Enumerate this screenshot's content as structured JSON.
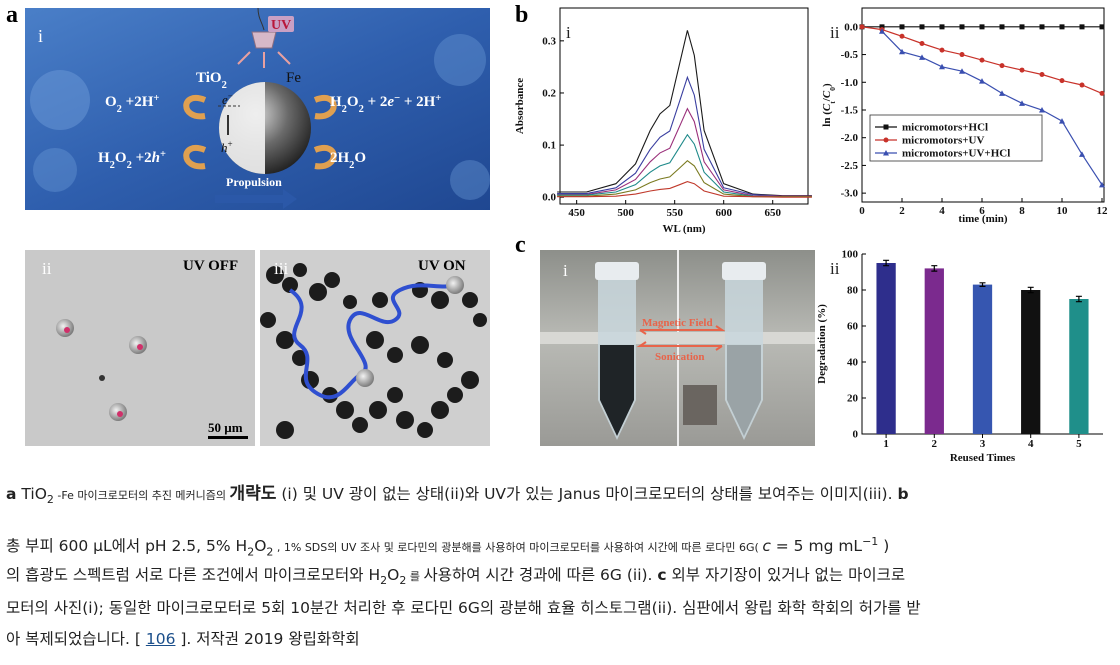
{
  "panel_labels": [
    "a",
    "b",
    "c"
  ],
  "schematic": {
    "index": "i",
    "uv": "UV",
    "tio2": [
      {
        "text": "TiO"
      },
      {
        "text": "2",
        "style": "sub"
      }
    ],
    "fe": "Fe",
    "left_top": [
      {
        "text": "O"
      },
      {
        "text": "2",
        "style": "sub"
      },
      {
        "text": " +2H"
      },
      {
        "text": "+",
        "style": "sup"
      }
    ],
    "right_top": [
      {
        "text": "H"
      },
      {
        "text": "2",
        "style": "sub"
      },
      {
        "text": "O"
      },
      {
        "text": "2",
        "style": "sub"
      },
      {
        "text": " + 2"
      },
      {
        "text": "e",
        "style": "italic"
      },
      {
        "text": "−",
        "style": "sup"
      },
      {
        "text": " + 2H"
      },
      {
        "text": "+",
        "style": "sup"
      }
    ],
    "left_bottom": [
      {
        "text": "H"
      },
      {
        "text": "2",
        "style": "sub"
      },
      {
        "text": "O"
      },
      {
        "text": "2",
        "style": "sub"
      },
      {
        "text": " +2"
      },
      {
        "text": "h",
        "style": "italic"
      },
      {
        "text": "+",
        "style": "sup"
      }
    ],
    "right_bottom": [
      {
        "text": "2H"
      },
      {
        "text": "2",
        "style": "sub"
      },
      {
        "text": "O"
      }
    ],
    "electron": [
      {
        "text": "e",
        "style": "italic"
      },
      {
        "text": "−",
        "style": "sup"
      }
    ],
    "hole": [
      {
        "text": "h",
        "style": "italic"
      },
      {
        "text": "+",
        "style": "sup"
      }
    ],
    "propulsion": "Propulsion"
  },
  "micrographs": {
    "off_index": "ii",
    "off_label": "UV OFF",
    "on_index": "iii",
    "on_label": "UV ON",
    "scale_bar": "50 µm"
  },
  "photo": {
    "index": "i",
    "magnetic": "Magnetic Field",
    "sonication": "Sonication"
  },
  "chart_data": [
    {
      "type": "line",
      "panel_index": "i",
      "xlabel": "WL (nm)",
      "ylabel": "Absorbance",
      "x": [
        430,
        460,
        490,
        510,
        525,
        535,
        545,
        555,
        563,
        570,
        580,
        600,
        630,
        660,
        690
      ],
      "series": [
        {
          "color": "#1a1a1a",
          "values": [
            0.01,
            0.01,
            0.026,
            0.064,
            0.128,
            0.16,
            0.176,
            0.256,
            0.32,
            0.272,
            0.128,
            0.026,
            0.006,
            0.003,
            0.003
          ]
        },
        {
          "color": "#3a3fa0",
          "values": [
            0.007,
            0.007,
            0.018,
            0.046,
            0.092,
            0.115,
            0.127,
            0.184,
            0.23,
            0.196,
            0.092,
            0.018,
            0.005,
            0.002,
            0.002
          ]
        },
        {
          "color": "#9a2f7a",
          "values": [
            0.005,
            0.005,
            0.014,
            0.034,
            0.068,
            0.085,
            0.094,
            0.136,
            0.17,
            0.145,
            0.068,
            0.014,
            0.003,
            0.002,
            0.002
          ]
        },
        {
          "color": "#1f8a8a",
          "values": [
            0.004,
            0.004,
            0.01,
            0.024,
            0.048,
            0.06,
            0.066,
            0.096,
            0.12,
            0.102,
            0.048,
            0.01,
            0.002,
            0.001,
            0.001
          ]
        },
        {
          "color": "#7a7a20",
          "values": [
            0.002,
            0.002,
            0.006,
            0.014,
            0.028,
            0.035,
            0.039,
            0.056,
            0.07,
            0.06,
            0.028,
            0.006,
            0.001,
            0.001,
            0.001
          ]
        },
        {
          "color": "#c0392b",
          "values": [
            0.001,
            0.001,
            0.002,
            0.006,
            0.012,
            0.015,
            0.017,
            0.024,
            0.03,
            0.026,
            0.012,
            0.002,
            0.001,
            0,
            0
          ]
        }
      ],
      "xlim": [
        433,
        686
      ],
      "ylim": [
        -0.013,
        0.363
      ],
      "xticks": [
        450,
        500,
        550,
        600,
        650
      ],
      "yticks": [
        {
          "value": 0,
          "label": "0.0"
        },
        0.1,
        0.2,
        0.3
      ]
    },
    {
      "type": "scatter",
      "panel_index": "ii",
      "xlabel": "time (min)",
      "ylabel": [
        {
          "text": "ln ("
        },
        {
          "text": "C",
          "style": "italic"
        },
        {
          "text": "t",
          "style": "sub"
        },
        {
          "text": "/"
        },
        {
          "text": "C",
          "style": "italic"
        },
        {
          "text": "0",
          "style": "sub"
        },
        {
          "text": ")"
        }
      ],
      "x": [
        0,
        1,
        2,
        3,
        4,
        5,
        6,
        7,
        8,
        9,
        10,
        11,
        12
      ],
      "series": [
        {
          "name": "micromotors+HCl",
          "color": "#111111",
          "marker": "square",
          "values": [
            0,
            0,
            0,
            0,
            0,
            0,
            0,
            0,
            0,
            0,
            0,
            0,
            0
          ]
        },
        {
          "name": "micromotors+UV",
          "color": "#c8322a",
          "marker": "circle",
          "values": [
            0,
            -0.05,
            -0.17,
            -0.3,
            -0.42,
            -0.5,
            -0.6,
            -0.7,
            -0.78,
            -0.86,
            -0.97,
            -1.05,
            -1.2
          ]
        },
        {
          "name": "micromotors+UV+HCl",
          "color": "#3a4fb0",
          "marker": "triangle",
          "values": [
            null,
            -0.08,
            -0.45,
            -0.55,
            -0.72,
            -0.8,
            -0.98,
            -1.2,
            -1.38,
            -1.5,
            -1.7,
            -2.3,
            -2.85
          ]
        }
      ],
      "legend": "center left",
      "xlim": [
        0,
        12.1
      ],
      "ylim": [
        -3.16,
        0.34
      ],
      "xticks": [
        0,
        2,
        4,
        6,
        8,
        10,
        12
      ],
      "yticks": [
        {
          "value": 0,
          "label": "0.0"
        },
        -0.5,
        {
          "value": -1,
          "label": "-1.0"
        },
        -1.5,
        {
          "value": -2,
          "label": "-2.0"
        },
        -2.5,
        {
          "value": -3,
          "label": "-3.0"
        }
      ]
    },
    {
      "type": "bar",
      "panel_index": "ii",
      "xlabel": "Reused Times",
      "ylabel": "Degradation (%)",
      "categories": [
        "1",
        "2",
        "3",
        "4",
        "5"
      ],
      "values": [
        95,
        92,
        83,
        80,
        75
      ],
      "errors": [
        1.5,
        1.5,
        1,
        1.5,
        1.5
      ],
      "colors": [
        "#2e2e8c",
        "#7b2a8e",
        "#3656b0",
        "#111111",
        "#1f8f8a"
      ],
      "ylim": [
        0,
        100
      ],
      "yticks": [
        0,
        20,
        40,
        60,
        80,
        100
      ]
    }
  ],
  "caption": {
    "lines": [
      [
        {
          "text": "a",
          "style": "bold"
        },
        {
          "text": " TiO"
        },
        {
          "text": "2",
          "style": "sub"
        },
        {
          "text": " -Fe 마이크로모터의 추진 메커니즘의 ",
          "style": "small"
        },
        {
          "text": "개략도",
          "style": "big-bold"
        },
        {
          "text": " (i) 및 UV 광이 없는 상태(ii)와 UV가 있는 Janus 마이크로모터의 상태를 보여주는 이미지(iii). "
        },
        {
          "text": "b",
          "style": "bold"
        }
      ],
      [
        {
          "text": "총 부피 600 μL에서 pH 2.5, 5% H"
        },
        {
          "text": "2",
          "style": "sub"
        },
        {
          "text": "O"
        },
        {
          "text": "2",
          "style": "sub"
        },
        {
          "text": " , 1% SDS의 UV 조사 및 로다민의 광분해를 사용하여 마이크로모터를 사용하여 시간에 따른 로다민 6G( ",
          "style": "small"
        },
        {
          "text": "c",
          "style": "italic"
        },
        {
          "text": " = 5 mg mL"
        },
        {
          "text": "−1",
          "style": "sup"
        },
        {
          "text": " )"
        }
      ],
      [
        {
          "text": "의 흡광도 스펙트럼 서로 다른 조건에서 마이크로모터와 H"
        },
        {
          "text": "2",
          "style": "sub"
        },
        {
          "text": "O"
        },
        {
          "text": "2",
          "style": "sub"
        },
        {
          "text": " 를 ",
          "style": "small"
        },
        {
          "text": "사용하여 시간 경과에 따른 6G (ii). "
        },
        {
          "text": "c",
          "style": "bold"
        },
        {
          "text": " 외부 자기장이 있거나 없는 마이크로"
        }
      ],
      [
        {
          "text": "모터의 사진(i); 동일한 마이크로모터로 5회 10분간 처리한 후 로다민 6G의 광분해 효율 히스토그램(ii). 심판에서 왕립 화학 학회의 허가를 받"
        }
      ],
      [
        {
          "text": "아 복제되었습니다. [ "
        },
        {
          "text": "106",
          "style": "link"
        },
        {
          "text": " ]. 저작권 2019 왕립화학회"
        }
      ]
    ]
  }
}
